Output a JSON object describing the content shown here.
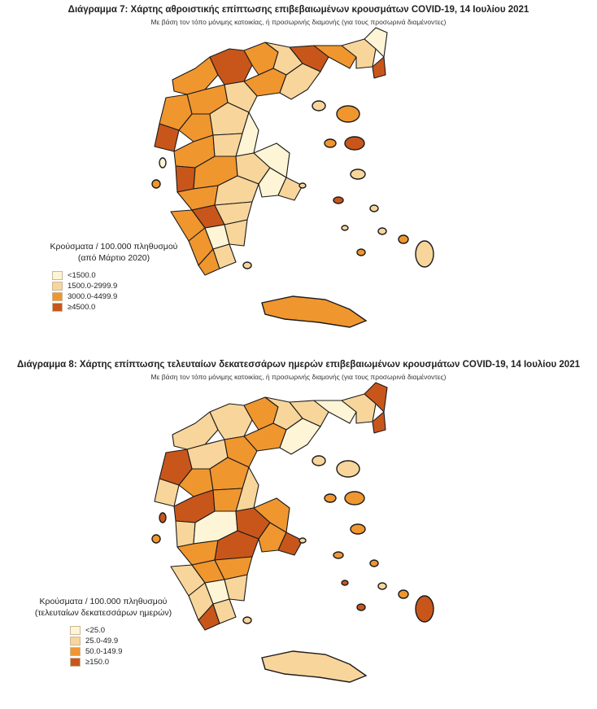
{
  "colors": {
    "c1": "#fdf5d6",
    "c2": "#f8d59b",
    "c3": "#f0962f",
    "c4": "#c8561b",
    "border": "#1a1a1a"
  },
  "map1": {
    "title": "Διάγραμμα 7: Χάρτης αθροιστικής επίπτωσης επιβεβαιωμένων κρουσμάτων COVID-19, 14 Ιουλίου 2021",
    "subtitle": "Με βάση τον τόπο μόνιμης κατοικίας, ή προσωρινής διαμονής (για τους προσωρινά διαμένοντες)",
    "legend_title_1": "Κρούσματα / 100.000 πληθυσμού",
    "legend_title_2": "(από Μάρτιο 2020)",
    "legend": [
      "<1500.0",
      "1500.0-2999.9",
      "3000.0-4499.9",
      "≥4500.0"
    ]
  },
  "map2": {
    "title": "Διάγραμμα 8: Χάρτης επίπτωσης τελευταίων δεκατεσσάρων ημερών επιβεβαιωμένων κρουσμάτων COVID-19, 14 Ιουλίου 2021",
    "subtitle": "Με βάση τον τόπο μόνιμης κατοικίας, ή προσωρινής διαμονής (για τους προσωρινά διαμένοντες)",
    "legend_title_1": "Κρούσματα / 100.000 πληθυσμού",
    "legend_title_2": "(τελευταίων δεκατεσσάρων ημερών)",
    "legend": [
      "<25.0",
      "25.0-49.9",
      "50.0-149.9",
      "≥150.0"
    ]
  },
  "regions_map1": [
    "c3",
    "c4",
    "c3",
    "c2",
    "c4",
    "c3",
    "c2",
    "c1",
    "c4",
    "c3",
    "c2",
    "c3",
    "c2",
    "c3",
    "c4",
    "c3",
    "c2",
    "c1",
    "c3",
    "c2",
    "c4",
    "c3",
    "c2",
    "c1",
    "c3",
    "c2",
    "c3",
    "c4",
    "c2",
    "c3",
    "c1",
    "c2",
    "c3",
    "c2",
    "c1",
    "c2"
  ],
  "regions_map2": [
    "c2",
    "c2",
    "c3",
    "c2",
    "c2",
    "c1",
    "c2",
    "c4",
    "c4",
    "c3",
    "c1",
    "c2",
    "c3",
    "c4",
    "c2",
    "c3",
    "c3",
    "c2",
    "c4",
    "c3",
    "c2",
    "c1",
    "c4",
    "c3",
    "c3",
    "c4",
    "c2",
    "c3",
    "c3",
    "c2",
    "c1",
    "c2",
    "c4",
    "c2",
    "c3",
    "c4"
  ],
  "islands_map1": [
    "c3",
    "c4",
    "c2",
    "c3",
    "c2",
    "c1",
    "c3",
    "c2",
    "c4",
    "c2",
    "c3",
    "c2",
    "c3",
    "c2",
    "c2",
    "c2"
  ],
  "islands_map2": [
    "c2",
    "c3",
    "c3",
    "c3",
    "c2",
    "c4",
    "c3",
    "c2",
    "c3",
    "c2",
    "c3",
    "c4",
    "c4",
    "c4",
    "c3",
    "c2"
  ]
}
